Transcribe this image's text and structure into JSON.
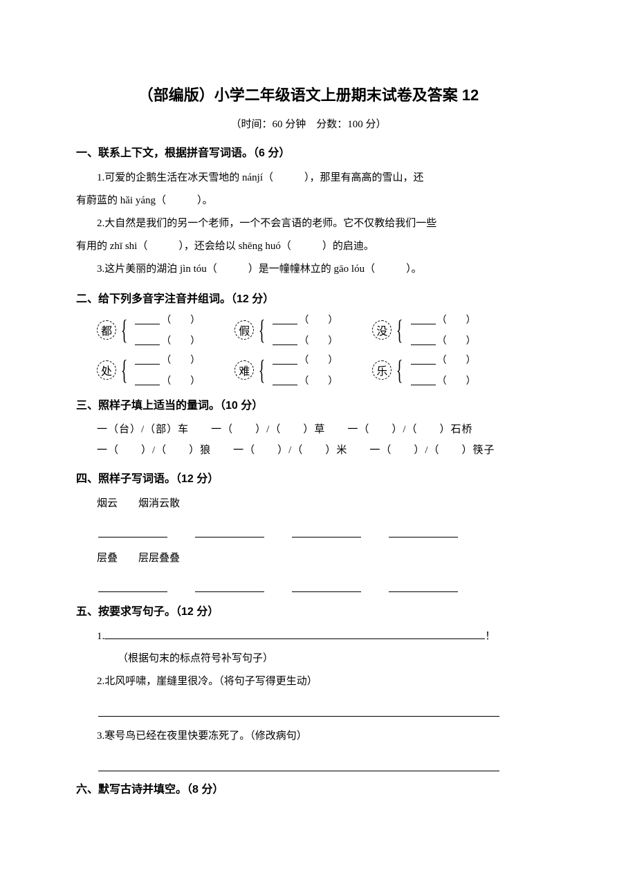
{
  "title": "（部编版）小学二年级语文上册期末试卷及答案 12",
  "subtitle": "（时间：60 分钟　分数：100 分）",
  "sections": {
    "s1": {
      "header": "一、联系上下文，根据拼音写词语。（6 分）",
      "p1": "1.可爱的企鹅生活在冰天雪地的 nánjí（　　　），那里有高高的雪山，还",
      "p1b": "有蔚蓝的 hǎi yáng（　　　）。",
      "p2": "2.大自然是我们的另一个老师，一个不会言语的老师。它不仅教给我们一些",
      "p2b": "有用的 zhī shi（　　　），还会给以 shēng huó（　　　）的启迪。",
      "p3": "3.这片美丽的湖泊 jìn tóu（　　　）是一幢幢林立的 gāo lóu（　　　）。"
    },
    "s2": {
      "header": "二、给下列多音字注音并组词。（12 分）",
      "chars": [
        "都",
        "假",
        "没",
        "处",
        "难",
        "乐"
      ]
    },
    "s3": {
      "header": "三、照样子填上适当的量词。（10 分）",
      "row1": "一（台）/（部）车　　一（　　）/（　　）草　　一（　　）/（　　）石桥",
      "row2": "一（　　）/（　　）狼　　一（　　）/（　　）米　　一（　　）/（　　）筷子"
    },
    "s4": {
      "header": "四、照样子写词语。（12 分）",
      "ex1": "烟云　　烟消云散",
      "ex2": "层叠　　层层叠叠"
    },
    "s5": {
      "header": "五、按要求写句子。（12 分）",
      "q1_prefix": "1.",
      "q1_suffix": "！",
      "q1_note": "（根据句末的标点符号补写句子）",
      "q2": "2.北风呼啸，崖缝里很冷。（将句子写得更生动）",
      "q3": "3.寒号鸟已经在夜里快要冻死了。（修改病句）"
    },
    "s6": {
      "header": "六、默写古诗并填空。（8 分）"
    }
  }
}
